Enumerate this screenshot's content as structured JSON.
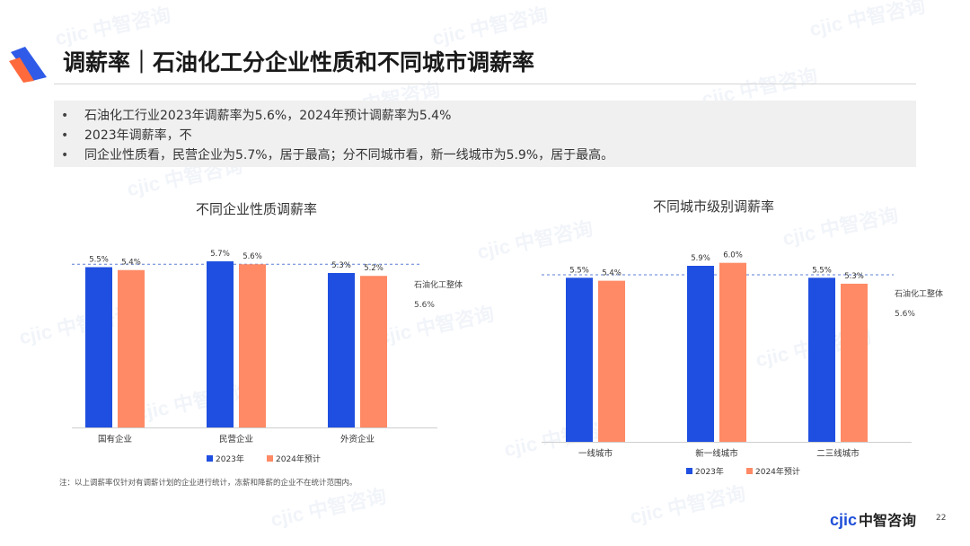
{
  "header": {
    "title": "调薪率｜石油化工分企业性质和不同城市调薪率"
  },
  "bullets": [
    "石油化工行业2023年调薪率为5.6%，2024年预计调薪率为5.4%",
    "2023年调薪率，不",
    "同企业性质看，民营企业为5.7%，居于最高；分不同城市看，新一线城市为5.9%，居于最高。"
  ],
  "watermark": "cjic 中智咨询",
  "footer": {
    "note": "注：以上调薪率仅针对有调薪计划的企业进行统计，冻薪和降薪的企业不在统计范围内。",
    "brand_logo": "cjic",
    "brand_name": "中智咨询",
    "page_number": "22"
  },
  "colors": {
    "series_2023": "#1f4fe0",
    "series_2024": "#ff8a65",
    "accent_blue": "#2f5be8",
    "accent_orange": "#ff6a3d"
  },
  "chart_data": [
    {
      "type": "bar",
      "title": "不同企业性质调薪率",
      "categories": [
        "国有企业",
        "民营企业",
        "外资企业"
      ],
      "series": [
        {
          "name": "2023年",
          "values": [
            5.5,
            5.7,
            5.3
          ],
          "labels": [
            "5.5%",
            "5.7%",
            "5.3%"
          ]
        },
        {
          "name": "2024年预计",
          "values": [
            5.4,
            5.6,
            5.2
          ],
          "labels": [
            "5.4%",
            "5.6%",
            "5.2%"
          ]
        }
      ],
      "reference_line": {
        "label": "石油化工整体",
        "value": 5.6,
        "value_label": "5.6%"
      },
      "ylim": [
        0,
        5.7
      ],
      "legend_position": "bottom",
      "grid": false
    },
    {
      "type": "bar",
      "title": "不同城市级别调薪率",
      "categories": [
        "一线城市",
        "新一线城市",
        "二三线城市"
      ],
      "series": [
        {
          "name": "2023年",
          "values": [
            5.5,
            5.9,
            5.5
          ],
          "labels": [
            "5.5%",
            "5.9%",
            "5.5%"
          ]
        },
        {
          "name": "2024年预计",
          "values": [
            5.4,
            6.0,
            5.3
          ],
          "labels": [
            "5.4%",
            "6.0%",
            "5.3%"
          ]
        }
      ],
      "reference_line": {
        "label": "石油化工整体",
        "value": 5.6,
        "value_label": "5.6%"
      },
      "ylim": [
        0,
        5.9
      ],
      "legend_position": "bottom",
      "grid": false
    }
  ]
}
